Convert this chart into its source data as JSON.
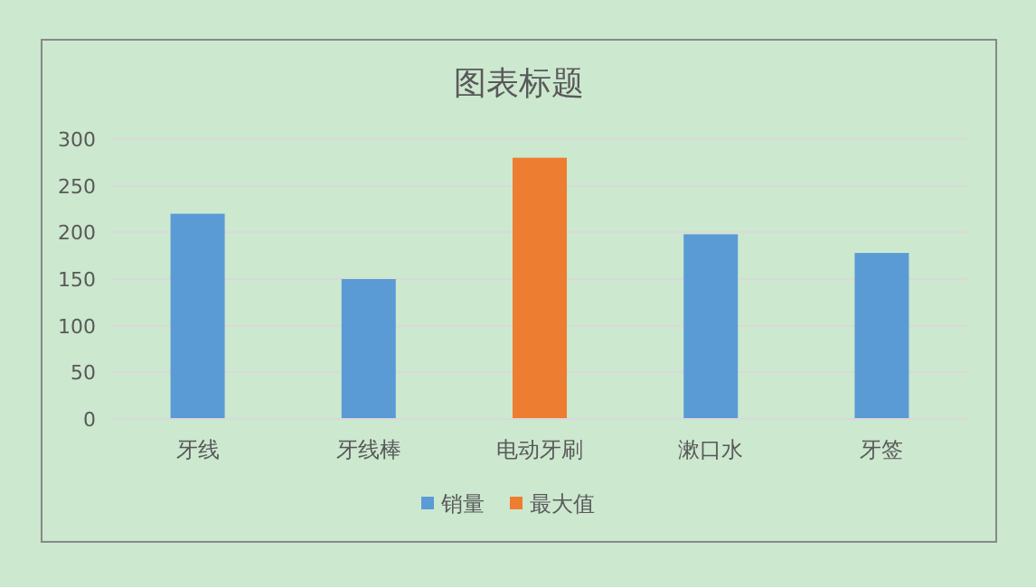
{
  "chart_data": {
    "type": "bar",
    "title": "图表标题",
    "categories": [
      "牙线",
      "牙线棒",
      "电动牙刷",
      "漱口水",
      "牙签"
    ],
    "series": [
      {
        "name": "销量",
        "color": "#5b9bd5",
        "values": [
          220,
          150,
          null,
          198,
          178
        ]
      },
      {
        "name": "最大值",
        "color": "#ed7d31",
        "values": [
          null,
          null,
          280,
          null,
          null
        ]
      }
    ],
    "ylim": [
      0,
      300
    ],
    "yticks": [
      0,
      50,
      100,
      150,
      200,
      250,
      300
    ],
    "grid": "y",
    "legend": "bottom"
  }
}
